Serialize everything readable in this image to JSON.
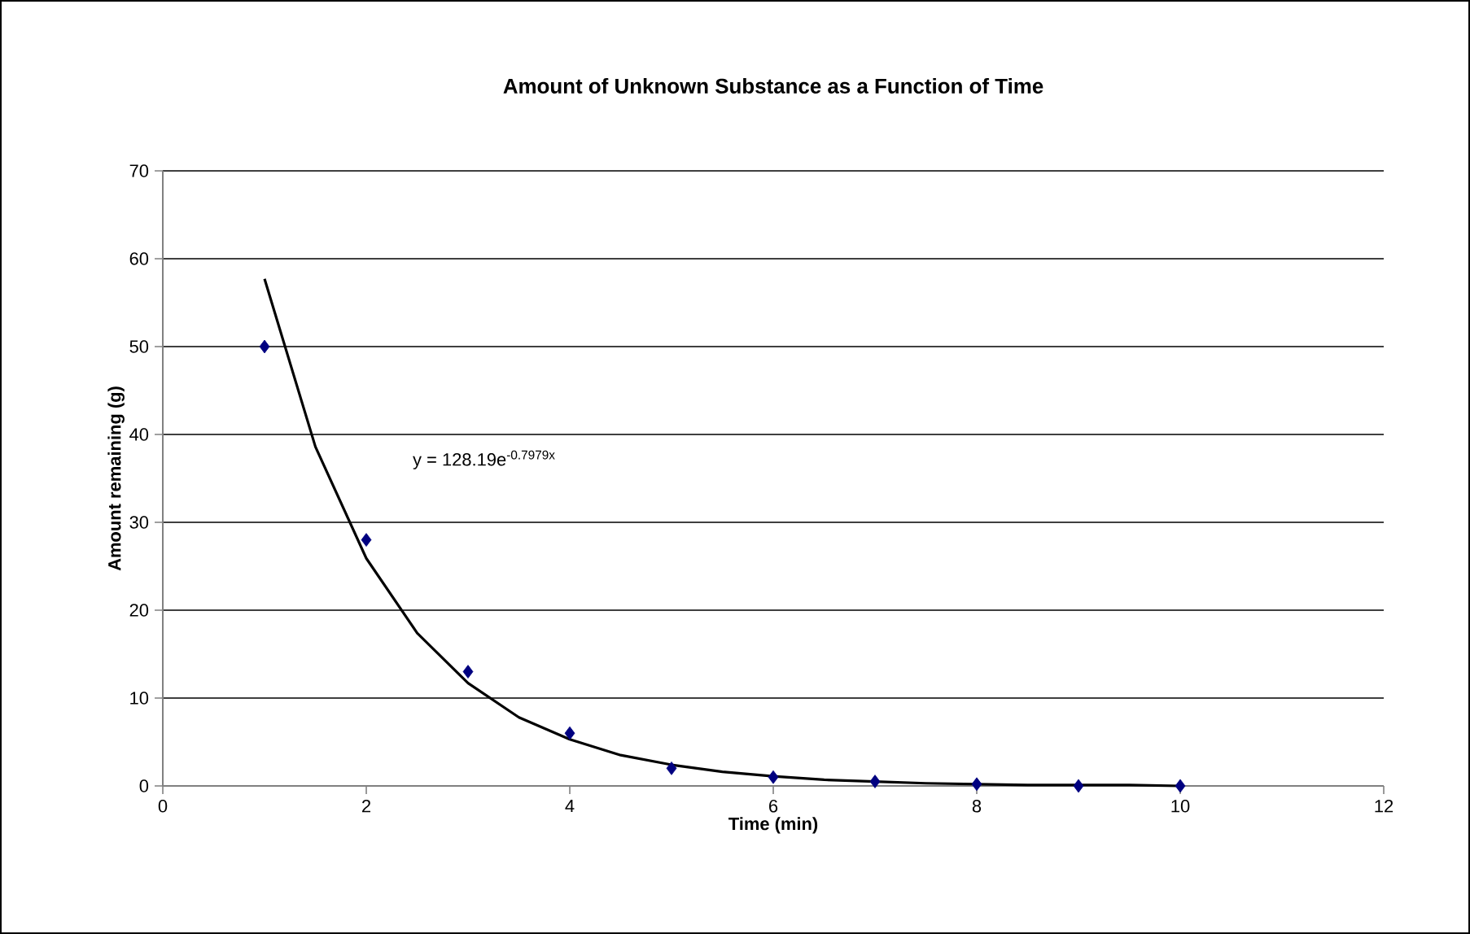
{
  "chart_data": {
    "type": "scatter",
    "title": "Amount of Unknown Substance as a Function of Time",
    "xlabel": "Time (min)",
    "ylabel": "Amount remaining (g)",
    "annotations": [
      "y = 128.19e$^{-0.7979x}$"
    ],
    "x": [
      1,
      2,
      3,
      4,
      5,
      6,
      7,
      8,
      9,
      10
    ],
    "series": [
      {
        "color": "#000080",
        "marker": "diamond",
        "values": [
          50,
          28,
          13,
          6,
          2,
          1,
          0.5,
          0.2,
          0,
          0
        ]
      },
      {
        "type": "line",
        "color": "#000000",
        "marker": "none",
        "line_style": "solid",
        "x": [
          1,
          1.5,
          2,
          2.5,
          3,
          3.5,
          4,
          4.5,
          5,
          5.5,
          6,
          6.5,
          7,
          7.5,
          8,
          8.5,
          9,
          9.5,
          10
        ],
        "values": [
          57.7,
          38.6,
          25.9,
          17.4,
          11.7,
          7.8,
          5.3,
          3.5,
          2.4,
          1.6,
          1.1,
          0.7,
          0.5,
          0.3,
          0.2,
          0.1,
          0.1,
          0.1,
          0
        ]
      }
    ],
    "xlim": [
      0,
      12
    ],
    "xticks": [
      0,
      2,
      4,
      6,
      8,
      10,
      12
    ],
    "ylim": [
      0,
      70
    ],
    "yticks": [
      0,
      10,
      20,
      30,
      40,
      50,
      60,
      70
    ],
    "grid": "y"
  }
}
